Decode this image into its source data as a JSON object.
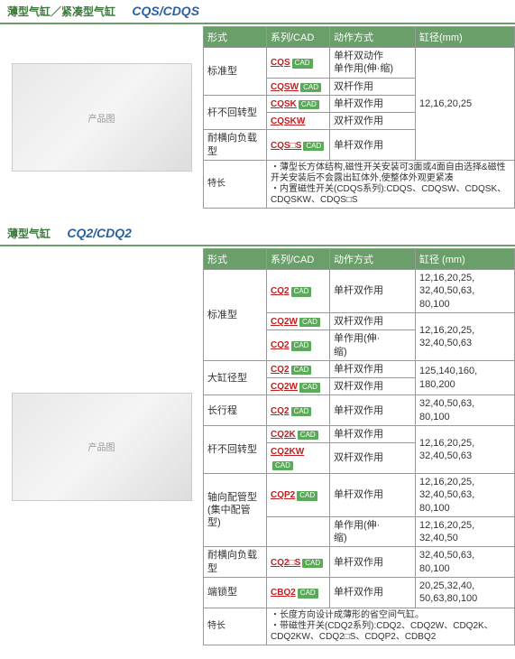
{
  "section1": {
    "titlePrefix": "薄型气缸／紧凑型气缸",
    "titleCode": "CQS/CDQS",
    "headers": {
      "type": "形式",
      "series": "系列/CAD",
      "action": "动作方式",
      "dia": "缸径(mm)"
    },
    "rows": [
      {
        "type": "标准型",
        "typeRowspan": 2,
        "series": "CQS",
        "cad": true,
        "action": "单杆双动作\n单作用(伸·缩)",
        "diaRowspan": 5,
        "dia": "12,16,20,25"
      },
      {
        "series": "CQSW",
        "cad": true,
        "action": "双杆作用"
      },
      {
        "type": "杆不回转型",
        "typeRowspan": 2,
        "series": "CQSK",
        "cad": true,
        "action": "单杆双作用"
      },
      {
        "series": "CQSKW",
        "action": "双杆双作用"
      },
      {
        "type": "耐横向负载型",
        "series": "CQS□S",
        "cad": true,
        "action": "单杆双作用"
      }
    ],
    "featureLabel": "特长",
    "features": [
      "薄型长方体结构,磁性开关安装可3面或4面自由选择&磁性开关安装后不会露出缸体外,使整体外观更紧凑",
      "内置磁性开关(CDQS系列):CDQS、CDQSW、CDQSK、CDQSKW、CDQS□S"
    ]
  },
  "section2": {
    "titlePrefix": "薄型气缸",
    "titleCode": "CQ2/CDQ2",
    "headers": {
      "type": "形式",
      "series": "系列/CAD",
      "action": "动作方式",
      "dia": "缸径 (mm)"
    },
    "rows": [
      {
        "type": "标准型",
        "typeRowspan": 3,
        "series": "CQ2",
        "cad": true,
        "action": "单杆双作用",
        "dia": "12,16,20,25,\n32,40,50,63,\n80,100"
      },
      {
        "series": "CQ2W",
        "cad": true,
        "action": "双杆双作用",
        "diaRowspan": 2,
        "dia": "12,16,20,25,\n32,40,50,63"
      },
      {
        "series": "CQ2",
        "cad": true,
        "action": "单作用(伸·\n缩)"
      },
      {
        "type": "大缸径型",
        "typeRowspan": 2,
        "series": "CQ2",
        "cad": true,
        "action": "单杆双作用",
        "diaRowspan": 2,
        "dia": "125,140,160,\n180,200"
      },
      {
        "series": "CQ2W",
        "cad": true,
        "action": "双杆双作用"
      },
      {
        "type": "长行程",
        "series": "CQ2",
        "cad": true,
        "action": "单杆双作用",
        "dia": "32,40,50,63,\n80,100"
      },
      {
        "type": "杆不回转型",
        "typeRowspan": 2,
        "series": "CQ2K",
        "cad": true,
        "action": "单杆双作用",
        "diaRowspan": 2,
        "dia": "12,16,20,25,\n32,40,50,63"
      },
      {
        "series": "CQ2KW",
        "cad": true,
        "action": "双杆双作用"
      },
      {
        "type": "轴向配管型\n(集中配管型)",
        "typeRowspan": 2,
        "series": "CQP2",
        "cad": true,
        "action": "单杆双作用",
        "dia": "12,16,20,25,\n32,40,50,63,\n80,100"
      },
      {
        "action": "单作用(伸·\n缩)",
        "dia": "12,16,20,25,\n32,40,50"
      },
      {
        "type": "耐横向负载型",
        "series": "CQ2□S",
        "cad": true,
        "action": "单杆双作用",
        "dia": "32,40,50,63,\n80,100"
      },
      {
        "type": "端锁型",
        "series": "CBQ2",
        "cad": true,
        "action": "单杆双作用",
        "dia": "20,25,32,40,\n50,63,80,100"
      }
    ],
    "featureLabel": "特长",
    "features": [
      "长度方向设计成薄形的省空间气缸。",
      "带磁性开关(CDQ2系列):CDQ2、CDQ2W、CDQ2K、CDQ2KW、CDQ2□S、CDQP2、CDBQ2"
    ]
  },
  "cadLabel": "CAD"
}
